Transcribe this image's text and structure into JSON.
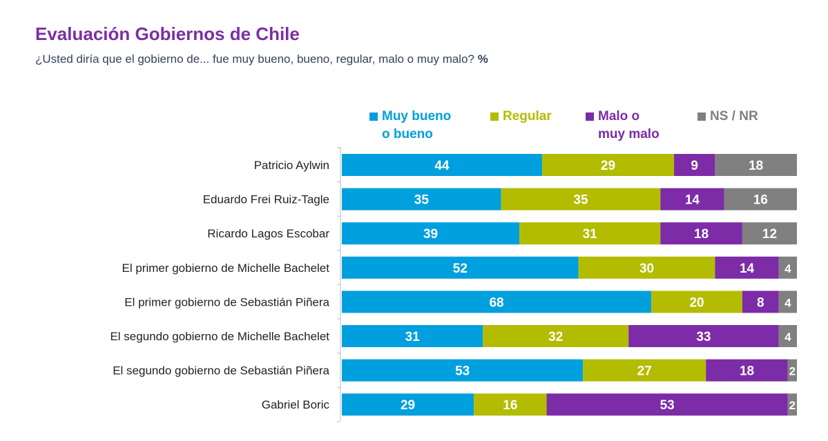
{
  "title": "Evaluación Gobiernos de Chile",
  "subtitle": "¿Usted diría que el gobierno de... fue muy bueno, bueno, regular, malo o muy malo?",
  "subtitle_unit": "%",
  "chart_data": {
    "type": "bar",
    "orientation": "horizontal",
    "stacked": true,
    "title": "Evaluación Gobiernos de Chile",
    "xlabel": "",
    "ylabel": "",
    "xlim": [
      0,
      100
    ],
    "legend_position": "top",
    "categories": [
      "Patricio Aylwin",
      "Eduardo Frei Ruiz-Tagle",
      "Ricardo Lagos Escobar",
      "El primer gobierno de Michelle Bachelet",
      "El primer gobierno de Sebastián Piñera",
      "El segundo gobierno de Michelle Bachelet",
      "El segundo gobierno de Sebastián Piñera",
      "Gabriel Boric"
    ],
    "series": [
      {
        "name": "Muy bueno o bueno",
        "legend_lines": [
          "Muy bueno",
          "o bueno"
        ],
        "color": "#009FDD",
        "values": [
          44,
          35,
          39,
          52,
          68,
          31,
          53,
          29
        ]
      },
      {
        "name": "Regular",
        "legend_lines": [
          "Regular"
        ],
        "color": "#B3BC00",
        "values": [
          29,
          35,
          31,
          30,
          20,
          32,
          27,
          16
        ]
      },
      {
        "name": "Malo o muy malo",
        "legend_lines": [
          "Malo o",
          "muy malo"
        ],
        "color": "#7B2CA6",
        "values": [
          9,
          14,
          18,
          14,
          8,
          33,
          18,
          53
        ]
      },
      {
        "name": "NS / NR",
        "legend_lines": [
          "NS / NR"
        ],
        "color": "#808080",
        "values": [
          18,
          16,
          12,
          4,
          4,
          4,
          2,
          2
        ]
      }
    ]
  }
}
